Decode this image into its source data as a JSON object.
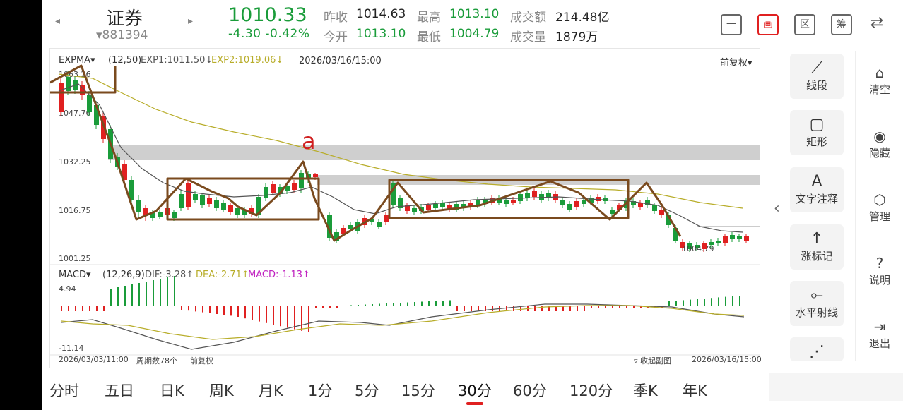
{
  "header": {
    "prev_arrow": "◂",
    "next_arrow": "▸",
    "title": "证券",
    "code": "▾881394",
    "price": "1010.33",
    "change": "-4.30  -0.42%",
    "stats": [
      {
        "label": "昨收",
        "value": "1014.63",
        "color": "#222222"
      },
      {
        "label": "最高",
        "value": "1013.10",
        "color": "#1a9c3a"
      },
      {
        "label": "成交额",
        "value": "214.48亿",
        "color": "#222222"
      },
      {
        "label": "今开",
        "value": "1013.10",
        "color": "#1a9c3a"
      },
      {
        "label": "最低",
        "value": "1004.79",
        "color": "#1a9c3a"
      },
      {
        "label": "成交量",
        "value": "1879万",
        "color": "#222222"
      }
    ],
    "tool_icons": [
      "minus-icon",
      "draw-icon",
      "zone-icon",
      "chip-icon",
      "rotate-icon"
    ],
    "tool_glyphs": [
      "一",
      "画",
      "区",
      "筹",
      "⇄"
    ]
  },
  "main_chart": {
    "indicator": "EXPMA",
    "params": "(12,50)",
    "exp1": "EXP1:1011.50↓",
    "exp2": "EXP2:1019.06↓",
    "datetime": "2026/03/16/15:00",
    "adjust": "前复权",
    "y_ticks": [
      "1063.26",
      "1047.76",
      "1032.25",
      "1016.75",
      "1001.25"
    ],
    "low_marker": "1004.79",
    "annotation": "a"
  },
  "macd_chart": {
    "indicator": "MACD",
    "params": "(12,26,9)",
    "dif": "DIF:-3.28↑",
    "dea": "DEA:-2.71↑",
    "macd": "MACD:-1.13↑",
    "y_max": "4.94",
    "y_min": "-11.14"
  },
  "footer": {
    "start_date": "2026/03/03/11:00",
    "period_count": "周期数78个",
    "adjust": "前复权",
    "collapse": "收起副图",
    "end_date": "2026/03/16/15:00"
  },
  "tools": [
    {
      "icon": "line-segment-icon",
      "glyph": "⟋",
      "label": "线段"
    },
    {
      "icon": "rectangle-icon",
      "glyph": "▢",
      "label": "矩形"
    },
    {
      "icon": "text-icon",
      "glyph": "A",
      "label": "文字注释"
    },
    {
      "icon": "up-arrow-icon",
      "glyph": "↑",
      "label": "涨标记"
    },
    {
      "icon": "horizontal-ray-icon",
      "glyph": "⟜",
      "label": "水平射线"
    },
    {
      "icon": "more-tool-icon",
      "glyph": "⋰",
      "label": ""
    }
  ],
  "side": [
    {
      "icon": "clear-icon",
      "glyph": "⌂",
      "label": "清空"
    },
    {
      "icon": "eye-icon",
      "glyph": "◉",
      "label": "隐藏"
    },
    {
      "icon": "manage-icon",
      "glyph": "⬡",
      "label": "管理"
    },
    {
      "icon": "help-icon",
      "glyph": "?",
      "label": "说明"
    },
    {
      "icon": "exit-icon",
      "glyph": "⇥",
      "label": "退出"
    }
  ],
  "tabs": [
    "分时",
    "五日",
    "日K",
    "周K",
    "月K",
    "1分",
    "5分",
    "15分",
    "30分",
    "60分",
    "120分",
    "季K",
    "年K"
  ],
  "active_tab": "30分",
  "colors": {
    "up": "#e02020",
    "down": "#1a9c3a",
    "exp1": "#555555",
    "exp2": "#b8ad2a",
    "draw": "#7a4a1e"
  }
}
